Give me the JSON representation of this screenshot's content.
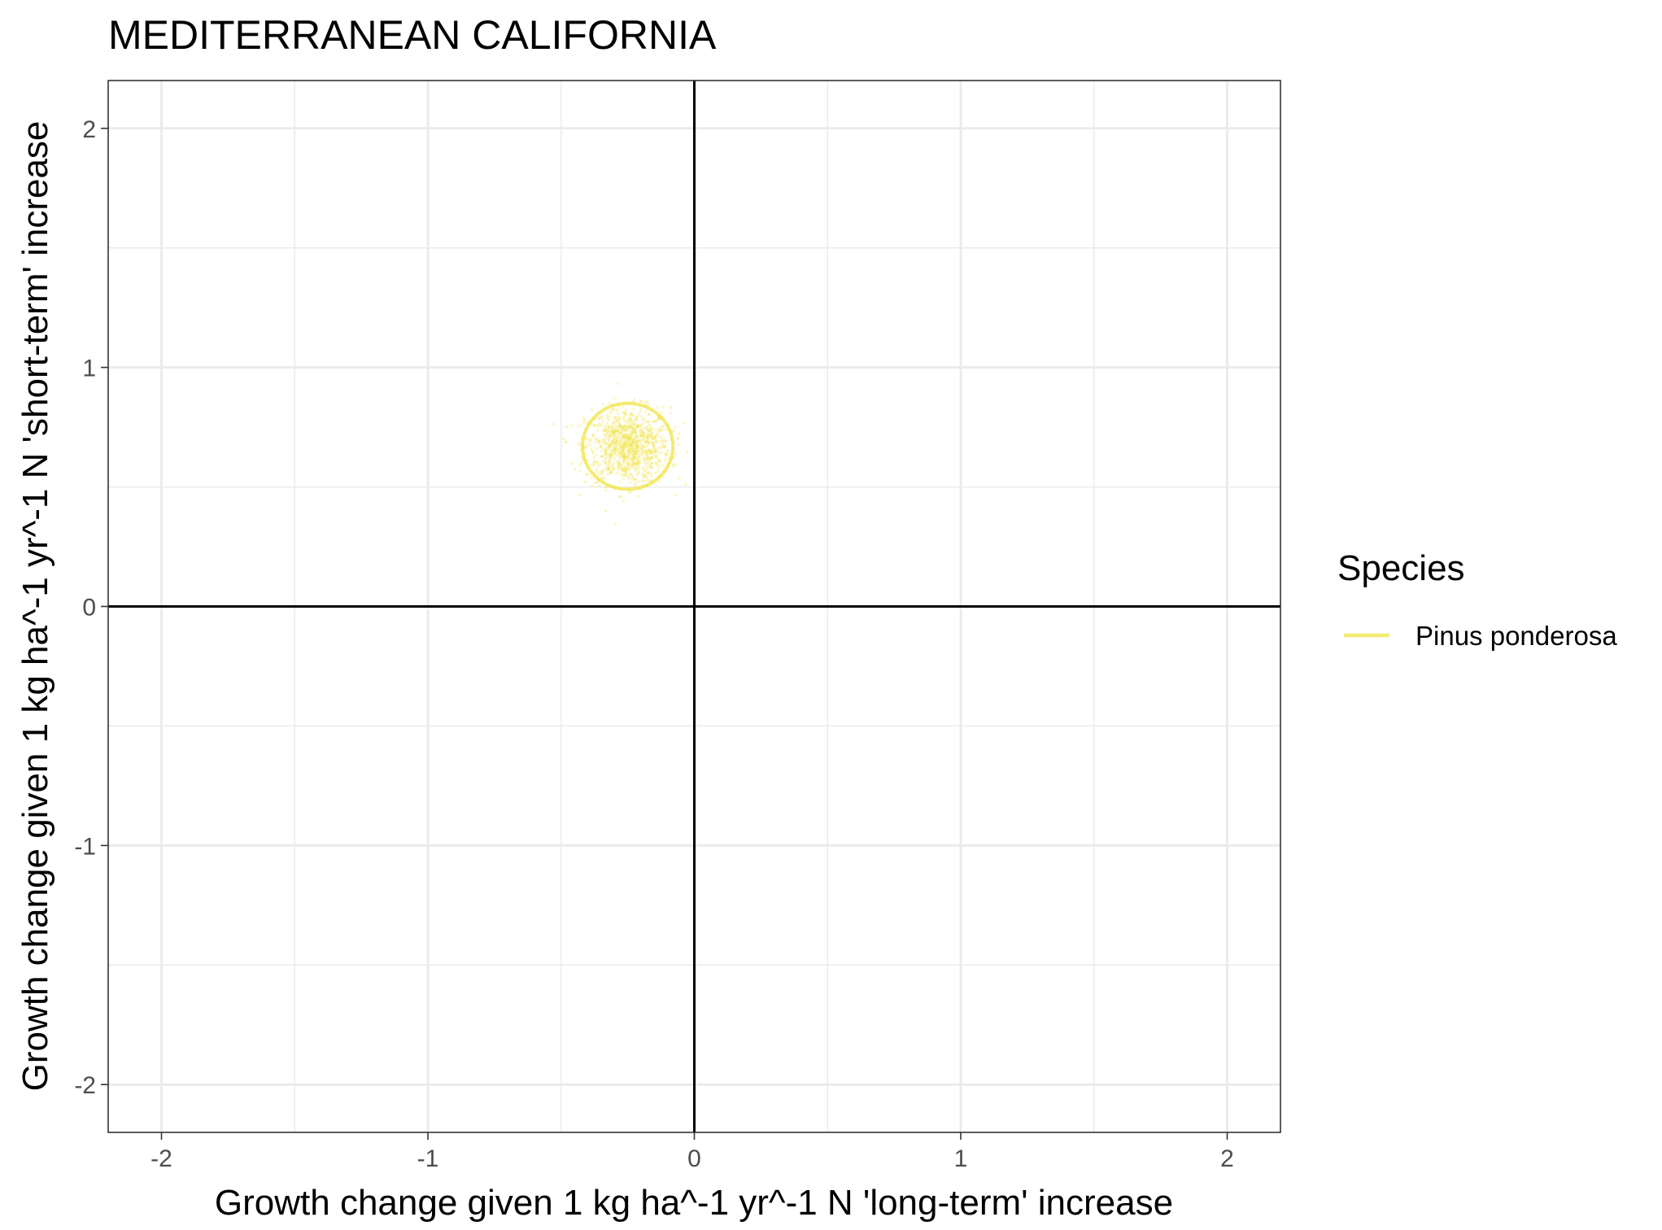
{
  "chart_data": {
    "type": "scatter",
    "title": "MEDITERRANEAN CALIFORNIA",
    "xlabel": "Growth change given 1 kg ha^-1 yr^-1 N 'long-term' increase",
    "ylabel": "Growth change given 1 kg ha^-1 yr^-1 N 'short-term' increase",
    "xlim": [
      -2.2,
      2.2
    ],
    "ylim": [
      -2.2,
      2.2
    ],
    "x_ticks": [
      -2,
      -1,
      0,
      1,
      2
    ],
    "y_ticks": [
      -2,
      -1,
      0,
      1,
      2
    ],
    "x_tick_labels": [
      "-2",
      "-1",
      "0",
      "1",
      "2"
    ],
    "y_tick_labels": [
      "-2",
      "-1",
      "0",
      "1",
      "2"
    ],
    "grid": true,
    "reference_lines": {
      "x": 0,
      "y": 0
    },
    "legend": {
      "title": "Species",
      "position": "right"
    },
    "series": [
      {
        "name": "Pinus ponderosa",
        "color": "#f0e442",
        "center": [
          -0.25,
          0.67
        ],
        "spread_sd": [
          0.08,
          0.08
        ],
        "ellipse_radius": [
          0.17,
          0.18
        ],
        "point_count": 1000
      }
    ]
  }
}
